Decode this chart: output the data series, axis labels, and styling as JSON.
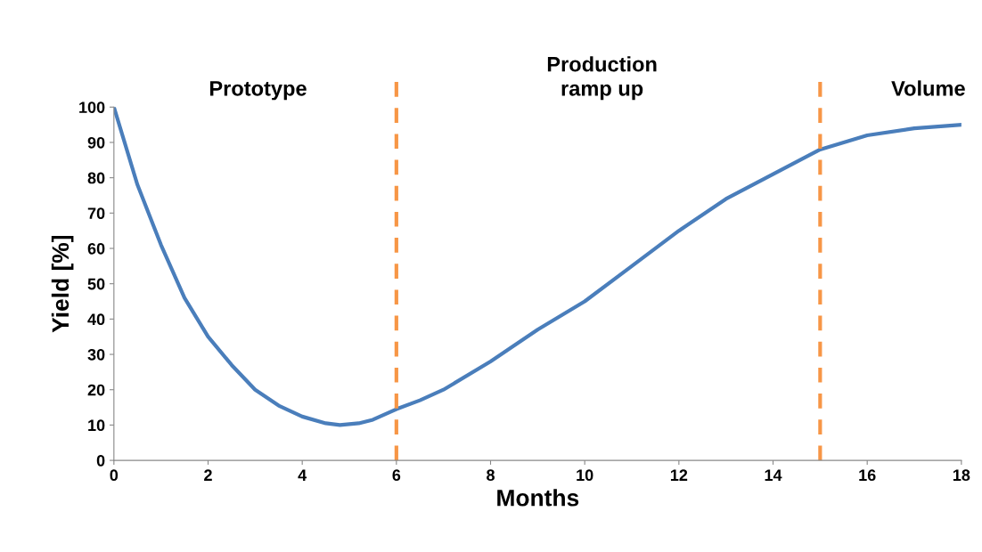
{
  "chart_data": {
    "type": "line",
    "xlabel": "Months",
    "ylabel": "Yield [%]",
    "x": [
      0,
      0.5,
      1,
      1.5,
      2,
      2.5,
      3,
      3.5,
      4,
      4.5,
      4.8,
      5.2,
      5.5,
      6,
      6.5,
      7,
      8,
      9,
      10,
      11,
      12,
      13,
      14,
      15,
      16,
      17,
      18
    ],
    "series": [
      {
        "color": "#4a7ebb",
        "values": [
          100,
          78,
          61,
          46,
          35,
          27,
          20,
          15.5,
          12.4,
          10.5,
          10,
          10.5,
          11.5,
          14.5,
          17,
          20,
          28,
          37,
          45,
          55,
          65,
          74,
          81,
          88,
          92,
          94,
          95
        ]
      }
    ],
    "xlim": [
      0,
      18
    ],
    "xticks": [
      0,
      2,
      4,
      6,
      8,
      10,
      12,
      14,
      16,
      18
    ],
    "ylim": [
      0,
      100
    ],
    "yticks": [
      0,
      10,
      20,
      30,
      40,
      50,
      60,
      70,
      80,
      90,
      100
    ],
    "ref_lines": [
      {
        "axis": "x",
        "value": 6,
        "color": "#f79646",
        "line_style": "dashed"
      },
      {
        "axis": "x",
        "value": 15,
        "color": "#f79646",
        "line_style": "dashed"
      }
    ],
    "annotations": [
      "Prototype",
      "Production\nramp up",
      "Volume"
    ],
    "grid": false,
    "marker": "none",
    "line_style": "solid"
  }
}
